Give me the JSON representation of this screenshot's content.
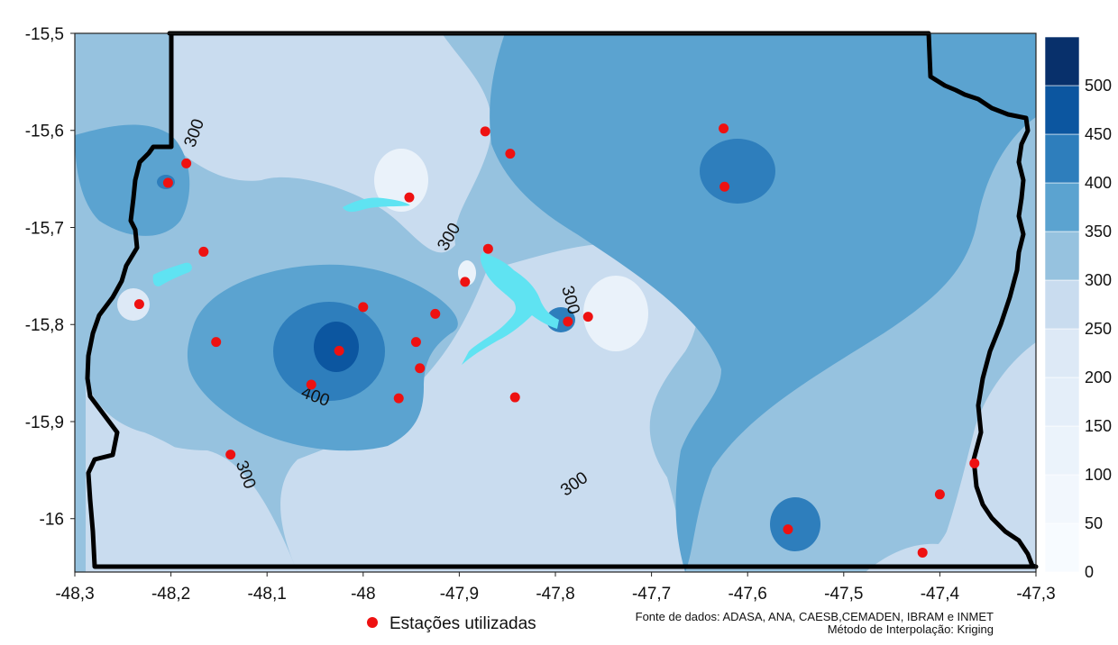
{
  "chart_data": {
    "type": "contour-map",
    "xlim": [
      -48.3,
      -47.3
    ],
    "ylim": [
      -16.055,
      -15.5
    ],
    "x_ticks": [
      {
        "value": -48.3,
        "label": "-48,3"
      },
      {
        "value": -48.2,
        "label": "-48,2"
      },
      {
        "value": -48.1,
        "label": "-48,1"
      },
      {
        "value": -48.0,
        "label": "-48"
      },
      {
        "value": -47.9,
        "label": "-47,9"
      },
      {
        "value": -47.8,
        "label": "-47,8"
      },
      {
        "value": -47.7,
        "label": "-47,7"
      },
      {
        "value": -47.6,
        "label": "-47,6"
      },
      {
        "value": -47.5,
        "label": "-47,5"
      },
      {
        "value": -47.4,
        "label": "-47,4"
      },
      {
        "value": -47.3,
        "label": "-47,3"
      }
    ],
    "y_ticks": [
      {
        "value": -15.5,
        "label": "-15,5"
      },
      {
        "value": -15.6,
        "label": "-15,6"
      },
      {
        "value": -15.7,
        "label": "-15,7"
      },
      {
        "value": -15.8,
        "label": "-15,8"
      },
      {
        "value": -15.9,
        "label": "-15,9"
      },
      {
        "value": -16.0,
        "label": "-16"
      }
    ],
    "legend_levels": [
      {
        "label": "0",
        "color": "#f7fbff"
      },
      {
        "label": "50",
        "color": "#f2f7fd"
      },
      {
        "label": "100",
        "color": "#ebf3fb"
      },
      {
        "label": "150",
        "color": "#e4eef9"
      },
      {
        "label": "200",
        "color": "#dde9f6"
      },
      {
        "label": "250",
        "color": "#c9dcef"
      },
      {
        "label": "300",
        "color": "#96c2df"
      },
      {
        "label": "350",
        "color": "#5ba3d0"
      },
      {
        "label": "400",
        "color": "#2e7ebc"
      },
      {
        "label": "450",
        "color": "#0c56a0"
      },
      {
        "label": "500",
        "color": "#08306b"
      }
    ],
    "contour_labels": [
      {
        "text": "300",
        "lon": -48.175,
        "lat": -15.603,
        "angle": -70
      },
      {
        "text": "300",
        "lon": -47.91,
        "lat": -15.71,
        "angle": -60
      },
      {
        "text": "300",
        "lon": -47.785,
        "lat": -15.775,
        "angle": 75
      },
      {
        "text": "400",
        "lon": -48.05,
        "lat": -15.875,
        "angle": 20
      },
      {
        "text": "300",
        "lon": -48.123,
        "lat": -15.955,
        "angle": 70
      },
      {
        "text": "300",
        "lon": -47.78,
        "lat": -15.965,
        "angle": -35
      }
    ],
    "stations": [
      {
        "lon": -48.203,
        "lat": -15.654
      },
      {
        "lon": -48.184,
        "lat": -15.634
      },
      {
        "lon": -48.166,
        "lat": -15.725
      },
      {
        "lon": -48.233,
        "lat": -15.779
      },
      {
        "lon": -48.153,
        "lat": -15.818
      },
      {
        "lon": -48.138,
        "lat": -15.934
      },
      {
        "lon": -48.0,
        "lat": -15.782
      },
      {
        "lon": -48.025,
        "lat": -15.827
      },
      {
        "lon": -48.054,
        "lat": -15.862
      },
      {
        "lon": -47.963,
        "lat": -15.876
      },
      {
        "lon": -47.952,
        "lat": -15.669
      },
      {
        "lon": -47.945,
        "lat": -15.818
      },
      {
        "lon": -47.941,
        "lat": -15.845
      },
      {
        "lon": -47.925,
        "lat": -15.789
      },
      {
        "lon": -47.894,
        "lat": -15.756
      },
      {
        "lon": -47.873,
        "lat": -15.601
      },
      {
        "lon": -47.847,
        "lat": -15.624
      },
      {
        "lon": -47.87,
        "lat": -15.722
      },
      {
        "lon": -47.842,
        "lat": -15.875
      },
      {
        "lon": -47.787,
        "lat": -15.797
      },
      {
        "lon": -47.766,
        "lat": -15.792
      },
      {
        "lon": -47.625,
        "lat": -15.598
      },
      {
        "lon": -47.624,
        "lat": -15.658
      },
      {
        "lon": -47.558,
        "lat": -16.011
      },
      {
        "lon": -47.418,
        "lat": -16.035
      },
      {
        "lon": -47.4,
        "lat": -15.975
      },
      {
        "lon": -47.364,
        "lat": -15.943
      }
    ]
  },
  "legend": {
    "stations_label": "Estações utilizadas",
    "station_color": "#ee1111"
  },
  "source": {
    "line1": "Fonte de dados: ADASA, ANA, CAESB,CEMADEN, IBRAM e INMET",
    "line2": "Método de Interpolação: Kriging"
  },
  "colors": {
    "boundary": "#000000",
    "lake": "#5fe3f2"
  }
}
